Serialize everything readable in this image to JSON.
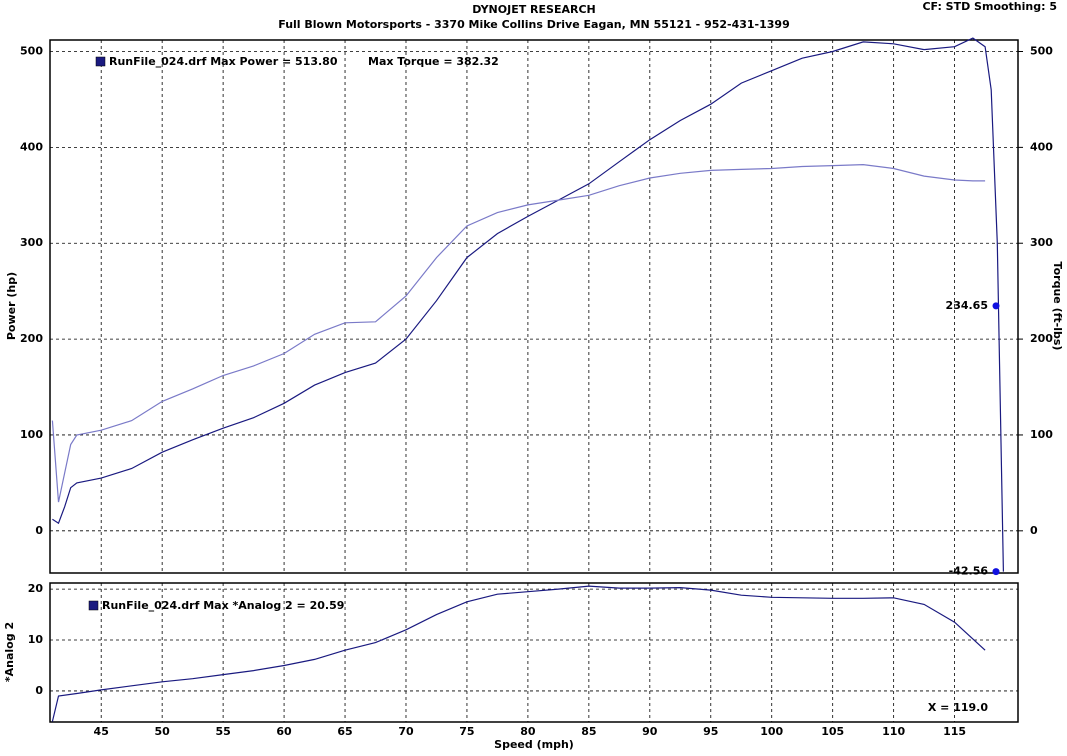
{
  "header": {
    "title": "DYNOJET RESEARCH",
    "subtitle": "Full Blown Motorsports - 3370 Mike Collins Drive  Eagan, MN 55121 - 952-431-1399",
    "settings": "CF: STD  Smoothing: 5"
  },
  "chart_data": [
    {
      "type": "line",
      "ylabel": "Power (hp)",
      "y2label": "Torque (ft-lbs)",
      "legend": [
        "RunFile_024.drf Max Power = 513.80",
        "Max Torque = 382.32"
      ],
      "x": [
        41,
        41.5,
        42,
        42.5,
        43,
        45,
        47.5,
        50,
        52.5,
        55,
        57.5,
        60,
        62.5,
        65,
        67.5,
        70,
        72.5,
        75,
        77.5,
        80,
        82.5,
        85,
        87.5,
        90,
        92.5,
        95,
        97.5,
        100,
        102.5,
        105,
        107.5,
        110,
        112.5,
        115,
        116.5,
        117.5,
        118,
        118.5,
        119
      ],
      "series": [
        {
          "name": "Power",
          "color": "#1a1a80",
          "values": [
            12,
            8,
            25,
            45,
            50,
            55,
            65,
            82,
            95,
            107,
            118,
            133,
            152,
            165,
            175,
            200,
            240,
            285,
            310,
            328,
            345,
            362,
            385,
            408,
            428,
            445,
            467,
            480,
            493,
            500,
            510,
            508,
            502,
            505,
            514,
            505,
            460,
            300,
            -42.56
          ]
        },
        {
          "name": "Torque",
          "color": "#7a7ac8",
          "axis": "y2",
          "values": [
            115,
            30,
            60,
            90,
            100,
            105,
            115,
            135,
            148,
            162,
            172,
            185,
            205,
            217,
            218,
            245,
            285,
            318,
            332,
            340,
            345,
            350,
            360,
            368,
            373,
            376,
            377,
            378,
            380,
            381,
            382,
            378,
            370,
            366,
            365,
            365,
            null,
            null,
            null
          ]
        }
      ],
      "cursor": {
        "values": [
          234.65,
          -42.56
        ]
      },
      "xlim": [
        40.8,
        120.2
      ],
      "xticks": [
        45,
        50,
        55,
        60,
        65,
        70,
        75,
        80,
        85,
        90,
        95,
        100,
        105,
        110,
        115
      ],
      "ylim": [
        -44,
        512
      ],
      "yticks": [
        0,
        100,
        200,
        300,
        400,
        500
      ],
      "y2lim": [
        -44,
        512
      ],
      "y2ticks": [
        0,
        100,
        200,
        300,
        400,
        500
      ],
      "grid": true
    },
    {
      "type": "line",
      "ylabel": "*Analog 2",
      "xlabel": "Speed (mph)",
      "legend": [
        "RunFile_024.drf Max *Analog 2 = 20.59"
      ],
      "cursor_label": "X = 119.0",
      "x": [
        41,
        41.5,
        43,
        45,
        47.5,
        50,
        52.5,
        55,
        57.5,
        60,
        62.5,
        65,
        67.5,
        70,
        72.5,
        75,
        77.5,
        80,
        82.5,
        85,
        87.5,
        90,
        92.5,
        95,
        97.5,
        100,
        102.5,
        105,
        107.5,
        110,
        112.5,
        115,
        117.5
      ],
      "series": [
        {
          "name": "*Analog 2",
          "color": "#1a1a80",
          "values": [
            -6,
            -1,
            -0.5,
            0.2,
            1,
            1.8,
            2.4,
            3.2,
            4,
            5,
            6.2,
            8,
            9.5,
            12,
            15,
            17.5,
            19,
            19.5,
            20,
            20.59,
            20.2,
            20.2,
            20.3,
            19.8,
            18.8,
            18.4,
            18.3,
            18.2,
            18.2,
            18.3,
            17,
            13.5,
            8
          ]
        }
      ],
      "xlim": [
        40.8,
        120.2
      ],
      "xticks": [
        45,
        50,
        55,
        60,
        65,
        70,
        75,
        80,
        85,
        90,
        95,
        100,
        105,
        110,
        115
      ],
      "ylim": [
        -6.1,
        21.2
      ],
      "yticks": [
        0,
        10,
        20
      ],
      "grid": true
    }
  ]
}
